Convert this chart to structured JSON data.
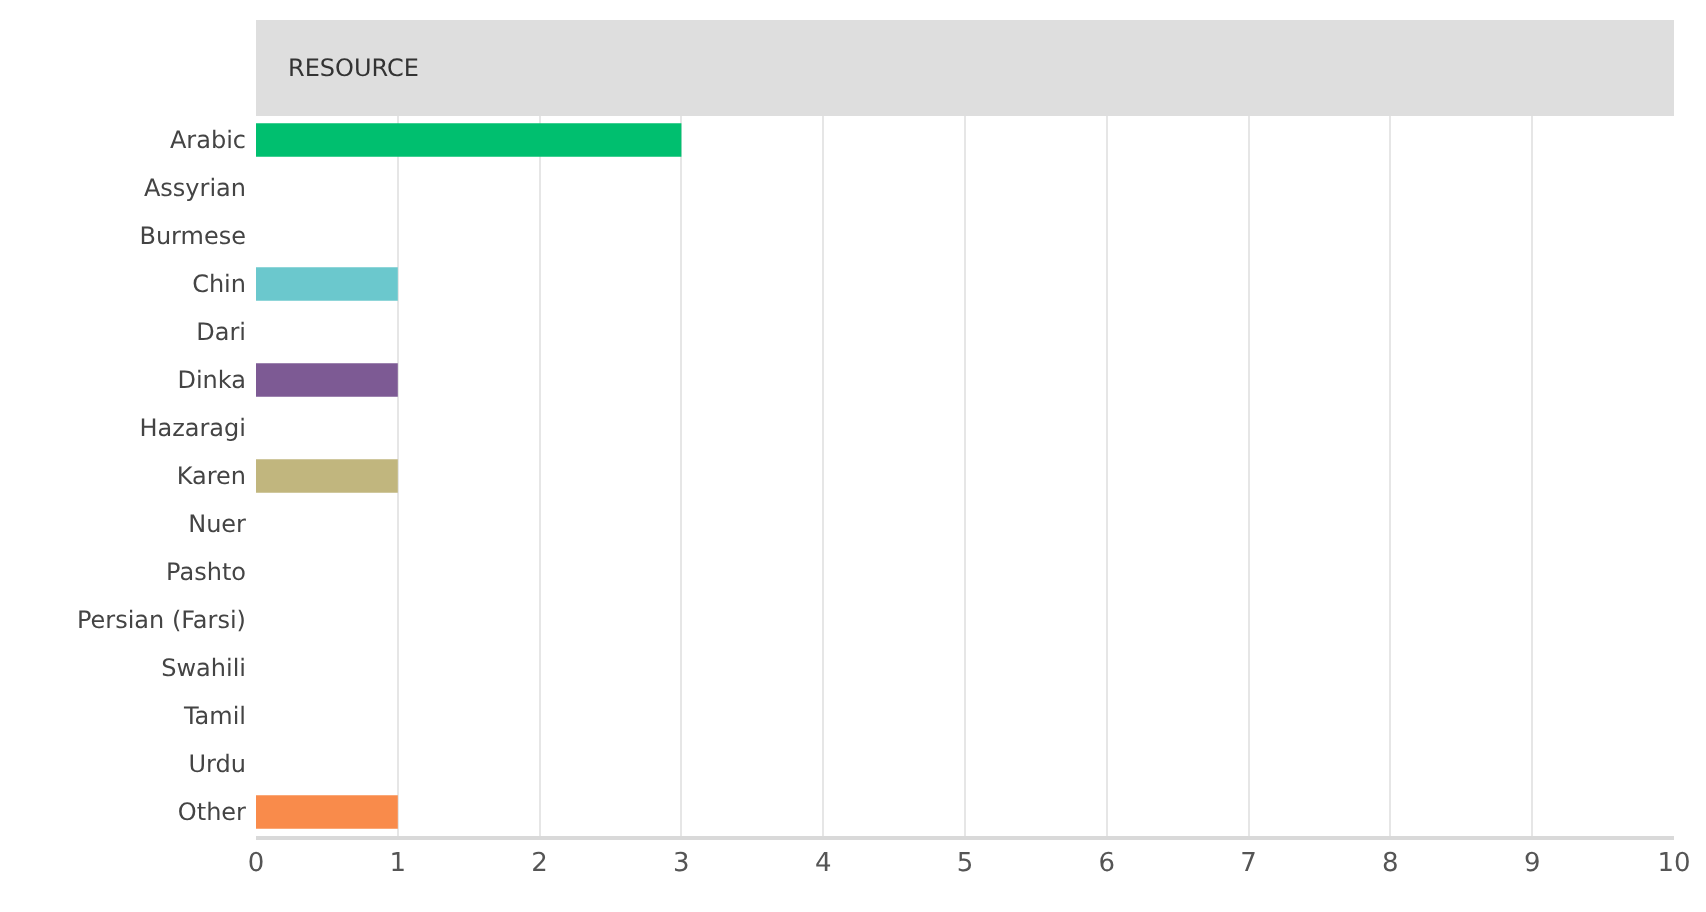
{
  "chart_data": {
    "type": "bar",
    "orientation": "horizontal",
    "title": "RESOURCE",
    "categories": [
      "Arabic",
      "Assyrian",
      "Burmese",
      "Chin",
      "Dari",
      "Dinka",
      "Hazaragi",
      "Karen",
      "Nuer",
      "Pashto",
      "Persian (Farsi)",
      "Swahili",
      "Tamil",
      "Urdu",
      "Other"
    ],
    "values": [
      3,
      0,
      0,
      1,
      0,
      1,
      0,
      1,
      0,
      0,
      0,
      0,
      0,
      0,
      1
    ],
    "colors": [
      "#00bf6f",
      null,
      null,
      "#6bc8cd",
      null,
      "#7d5a94",
      null,
      "#c1b67e",
      null,
      null,
      null,
      null,
      null,
      null,
      "#f98b4b"
    ],
    "xlim": [
      0,
      10
    ],
    "xticks": [
      0,
      1,
      2,
      3,
      4,
      5,
      6,
      7,
      8,
      9,
      10
    ],
    "grid": "x"
  }
}
